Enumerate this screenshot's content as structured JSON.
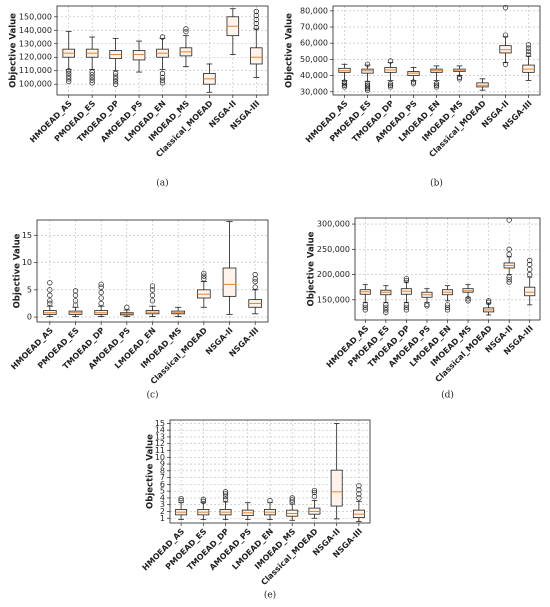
{
  "chart_data": [
    {
      "type": "box",
      "caption": "(a)",
      "y_label": "Objective Value",
      "categories": [
        "HMOEAD_AS",
        "PMOEAD_ES",
        "TMOEAD_DP",
        "AMOEAD_PS",
        "LMOEAD_EN",
        "IMOEAD_MS",
        "Classical_MOEAD",
        "NSGA-II",
        "NSGA-III"
      ],
      "box_color": "#fdf3ea",
      "median_color": "#e8822e",
      "grid": true,
      "ylim": [
        92000,
        158000
      ],
      "yticks": [
        {
          "value": 100000,
          "label": "100,000"
        },
        {
          "value": 110000,
          "label": "110,000"
        },
        {
          "value": 120000,
          "label": "120,000"
        },
        {
          "value": 130000,
          "label": "130,000"
        },
        {
          "value": 140000,
          "label": "140,000"
        },
        {
          "value": 150000,
          "label": "150,000"
        }
      ],
      "boxes": [
        {
          "whisker_low": 111000,
          "q1": 120000,
          "median": 123000,
          "q3": 126000,
          "whisker_high": 139000,
          "outliers": [
            102000,
            104000,
            106000,
            108000,
            110000
          ]
        },
        {
          "whisker_low": 111000,
          "q1": 120000,
          "median": 123000,
          "q3": 126000,
          "whisker_high": 135000,
          "outliers": [
            101000,
            103000,
            105000,
            107000,
            109000
          ]
        },
        {
          "whisker_low": 110000,
          "q1": 119000,
          "median": 122000,
          "q3": 125000,
          "whisker_high": 134000,
          "outliers": [
            100000,
            102000,
            104000,
            106000,
            108000
          ]
        },
        {
          "whisker_low": 109000,
          "q1": 118000,
          "median": 122000,
          "q3": 125000,
          "whisker_high": 132000,
          "outliers": []
        },
        {
          "whisker_low": 111000,
          "q1": 120000,
          "median": 123000,
          "q3": 126000,
          "whisker_high": 134000,
          "outliers": [
            101000,
            103000,
            105000,
            108000,
            135000
          ]
        },
        {
          "whisker_low": 113000,
          "q1": 121000,
          "median": 124000,
          "q3": 127000,
          "whisker_high": 136000,
          "outliers": [
            139000,
            141000
          ]
        },
        {
          "whisker_low": 94000,
          "q1": 100000,
          "median": 104000,
          "q3": 108000,
          "whisker_high": 115000,
          "outliers": []
        },
        {
          "whisker_low": 122000,
          "q1": 136000,
          "median": 143000,
          "q3": 150000,
          "whisker_high": 156000,
          "outliers": []
        },
        {
          "whisker_low": 105000,
          "q1": 115000,
          "median": 120000,
          "q3": 127000,
          "whisker_high": 141000,
          "outliers": [
            142000,
            145000,
            148000,
            151000,
            154000
          ]
        }
      ]
    },
    {
      "type": "box",
      "caption": "(b)",
      "y_label": "Objective Value",
      "categories": [
        "HMOEAD_AS",
        "PMOEAD_ES",
        "TMOEAD_DP",
        "AMOEAD_PS",
        "LMOEAD_EN",
        "IMOEAD_MS",
        "Classical_MOEAD",
        "NSGA-II",
        "NSGA-III"
      ],
      "box_color": "#fdf3ea",
      "median_color": "#e8822e",
      "grid": true,
      "ylim": [
        28000,
        83000
      ],
      "yticks": [
        {
          "value": 30000,
          "label": "30,000"
        },
        {
          "value": 40000,
          "label": "40,000"
        },
        {
          "value": 50000,
          "label": "50,000"
        },
        {
          "value": 60000,
          "label": "60,000"
        },
        {
          "value": 70000,
          "label": "70,000"
        },
        {
          "value": 80000,
          "label": "80,000"
        }
      ],
      "boxes": [
        {
          "whisker_low": 37000,
          "q1": 42000,
          "median": 43000,
          "q3": 44500,
          "whisker_high": 47000,
          "outliers": [
            33000,
            34000,
            35000,
            36000
          ]
        },
        {
          "whisker_low": 36500,
          "q1": 41500,
          "median": 43000,
          "q3": 44000,
          "whisker_high": 46500,
          "outliers": [
            31000,
            32000,
            33000,
            34000,
            35000,
            47000
          ]
        },
        {
          "whisker_low": 37000,
          "q1": 42000,
          "median": 43500,
          "q3": 45000,
          "whisker_high": 48000,
          "outliers": [
            33000,
            34000,
            35000,
            49000
          ]
        },
        {
          "whisker_low": 37000,
          "q1": 40000,
          "median": 41500,
          "q3": 42500,
          "whisker_high": 45000,
          "outliers": [
            35000,
            36000
          ]
        },
        {
          "whisker_low": 37000,
          "q1": 42000,
          "median": 43000,
          "q3": 44000,
          "whisker_high": 46000,
          "outliers": [
            33000,
            34000,
            35000
          ]
        },
        {
          "whisker_low": 40000,
          "q1": 42500,
          "median": 43000,
          "q3": 44000,
          "whisker_high": 46000,
          "outliers": [
            38000,
            39000
          ]
        },
        {
          "whisker_low": 31000,
          "q1": 33000,
          "median": 34000,
          "q3": 35500,
          "whisker_high": 38000,
          "outliers": []
        },
        {
          "whisker_low": 48000,
          "q1": 54000,
          "median": 56000,
          "q3": 58500,
          "whisker_high": 64000,
          "outliers": [
            47000,
            65000,
            82000
          ]
        },
        {
          "whisker_low": 37000,
          "q1": 42000,
          "median": 44000,
          "q3": 46500,
          "whisker_high": 52000,
          "outliers": [
            53000,
            55000,
            57000,
            59000
          ]
        }
      ]
    },
    {
      "type": "box",
      "caption": "(c)",
      "y_label": "Objective Value",
      "categories": [
        "HMOEAD_AS",
        "PMOEAD_ES",
        "TMOEAD_DP",
        "AMOEAD_PS",
        "LMOEAD_EN",
        "IMOEAD_MS",
        "Classical_MOEAD",
        "NSGA-II",
        "NSGA-III"
      ],
      "box_color": "#fdf3ea",
      "median_color": "#e8822e",
      "grid": true,
      "ylim": [
        -0.9,
        17.8
      ],
      "yticks": [
        0,
        5,
        10,
        15
      ],
      "boxes": [
        {
          "whisker_low": 0.1,
          "q1": 0.5,
          "median": 0.8,
          "q3": 1.2,
          "whisker_high": 2,
          "outliers": [
            2.5,
            3,
            4,
            5,
            6.3
          ]
        },
        {
          "whisker_low": 0.1,
          "q1": 0.5,
          "median": 0.8,
          "q3": 1.1,
          "whisker_high": 1.8,
          "outliers": [
            2.2,
            3,
            4,
            4.8
          ]
        },
        {
          "whisker_low": 0.1,
          "q1": 0.5,
          "median": 0.8,
          "q3": 1.2,
          "whisker_high": 2,
          "outliers": [
            2.5,
            3.5,
            4.5,
            5.5,
            6
          ]
        },
        {
          "whisker_low": 0.1,
          "q1": 0.4,
          "median": 0.6,
          "q3": 0.8,
          "whisker_high": 1.3,
          "outliers": [
            1.8
          ]
        },
        {
          "whisker_low": 0.1,
          "q1": 0.6,
          "median": 0.9,
          "q3": 1.2,
          "whisker_high": 2,
          "outliers": [
            3,
            4,
            5,
            5.7
          ]
        },
        {
          "whisker_low": 0.1,
          "q1": 0.6,
          "median": 0.8,
          "q3": 1.1,
          "whisker_high": 1.8,
          "outliers": []
        },
        {
          "whisker_low": 1.8,
          "q1": 3.5,
          "median": 4.2,
          "q3": 5,
          "whisker_high": 6.5,
          "outliers": [
            7,
            7.5,
            8
          ]
        },
        {
          "whisker_low": 0.5,
          "q1": 3.8,
          "median": 6,
          "q3": 9,
          "whisker_high": 17.5,
          "outliers": []
        },
        {
          "whisker_low": 0.6,
          "q1": 1.8,
          "median": 2.5,
          "q3": 3.2,
          "whisker_high": 5,
          "outliers": [
            5.5,
            6.5,
            7,
            7.8
          ]
        }
      ]
    },
    {
      "type": "box",
      "caption": "(d)",
      "y_label": "Objective Value",
      "categories": [
        "HMOEAD_AS",
        "PMOEAD_ES",
        "TMOEAD_DP",
        "AMOEAD_PS",
        "LMOEAD_EN",
        "IMOEAD_MS",
        "Classical_MOEAD",
        "NSGA-II",
        "NSGA-III"
      ],
      "box_color": "#fdf3ea",
      "median_color": "#e8822e",
      "grid": true,
      "ylim": [
        110000,
        312000
      ],
      "yticks": [
        {
          "value": 150000,
          "label": "150,000"
        },
        {
          "value": 200000,
          "label": "200,000"
        },
        {
          "value": 250000,
          "label": "250,000"
        },
        {
          "value": 300000,
          "label": "300,000"
        }
      ],
      "boxes": [
        {
          "whisker_low": 145000,
          "q1": 161000,
          "median": 166000,
          "q3": 170000,
          "whisker_high": 180000,
          "outliers": [
            130000,
            135000,
            140000
          ]
        },
        {
          "whisker_low": 145000,
          "q1": 160000,
          "median": 165000,
          "q3": 169000,
          "whisker_high": 178000,
          "outliers": [
            125000,
            130000,
            135000,
            140000
          ]
        },
        {
          "whisker_low": 145000,
          "q1": 161000,
          "median": 167000,
          "q3": 172000,
          "whisker_high": 185000,
          "outliers": [
            130000,
            135000,
            140000,
            188000,
            192000
          ]
        },
        {
          "whisker_low": 145000,
          "q1": 155000,
          "median": 160000,
          "q3": 165000,
          "whisker_high": 172000,
          "outliers": [
            138000,
            141000
          ]
        },
        {
          "whisker_low": 148000,
          "q1": 160000,
          "median": 165000,
          "q3": 170000,
          "whisker_high": 178000,
          "outliers": [
            130000,
            135000,
            140000
          ]
        },
        {
          "whisker_low": 155000,
          "q1": 165000,
          "median": 168000,
          "q3": 172000,
          "whisker_high": 180000,
          "outliers": [
            148000,
            152000
          ]
        },
        {
          "whisker_low": 120000,
          "q1": 126000,
          "median": 130000,
          "q3": 134000,
          "whisker_high": 142000,
          "outliers": [
            145000,
            148000
          ]
        },
        {
          "whisker_low": 200000,
          "q1": 213000,
          "median": 218000,
          "q3": 223000,
          "whisker_high": 235000,
          "outliers": [
            185000,
            190000,
            195000,
            240000,
            250000,
            308000
          ]
        },
        {
          "whisker_low": 140000,
          "q1": 158000,
          "median": 165000,
          "q3": 175000,
          "whisker_high": 195000,
          "outliers": [
            200000,
            210000,
            220000,
            228000
          ]
        }
      ]
    },
    {
      "type": "box",
      "caption": "(e)",
      "y_label": "Objective Value",
      "categories": [
        "HMOEAD_AS",
        "PMOEAD_ES",
        "TMOEAD_DP",
        "AMOEAD_PS",
        "LMOEAD_EN",
        "IMOEAD_MS",
        "Classical_MOEAD",
        "NSGA-II",
        "NSGA-III"
      ],
      "box_color": "#fdf3ea",
      "median_color": "#e8822e",
      "grid": true,
      "ylim": [
        0.3,
        15.5
      ],
      "yticks": [
        1,
        2,
        3,
        4,
        5,
        6,
        7,
        8,
        9,
        10,
        11,
        12,
        13,
        14,
        15
      ],
      "boxes": [
        {
          "whisker_low": 0.8,
          "q1": 1.5,
          "median": 1.9,
          "q3": 2.3,
          "whisker_high": 3.3,
          "outliers": [
            3.6,
            3.9
          ]
        },
        {
          "whisker_low": 0.8,
          "q1": 1.5,
          "median": 1.9,
          "q3": 2.3,
          "whisker_high": 3.3,
          "outliers": [
            3.5,
            3.8
          ]
        },
        {
          "whisker_low": 0.8,
          "q1": 1.5,
          "median": 1.9,
          "q3": 2.3,
          "whisker_high": 3.4,
          "outliers": [
            3.8,
            4.2,
            4.6,
            4.9
          ]
        },
        {
          "whisker_low": 0.8,
          "q1": 1.4,
          "median": 1.8,
          "q3": 2.2,
          "whisker_high": 3.3,
          "outliers": []
        },
        {
          "whisker_low": 0.8,
          "q1": 1.5,
          "median": 1.9,
          "q3": 2.3,
          "whisker_high": 3.3,
          "outliers": [
            3.6
          ]
        },
        {
          "whisker_low": 0.7,
          "q1": 1.3,
          "median": 1.7,
          "q3": 2.2,
          "whisker_high": 3.1,
          "outliers": [
            3.4,
            3.7,
            4
          ]
        },
        {
          "whisker_low": 1,
          "q1": 1.6,
          "median": 2,
          "q3": 2.5,
          "whisker_high": 3.6,
          "outliers": [
            4.2,
            4.8,
            5.1
          ]
        },
        {
          "whisker_low": 0.9,
          "q1": 2.8,
          "median": 4.9,
          "q3": 8.1,
          "whisker_high": 15,
          "outliers": []
        },
        {
          "whisker_low": 0.5,
          "q1": 1.1,
          "median": 1.6,
          "q3": 2.2,
          "whisker_high": 3.5,
          "outliers": [
            4,
            4.6,
            5.2,
            5.8
          ]
        }
      ]
    }
  ]
}
